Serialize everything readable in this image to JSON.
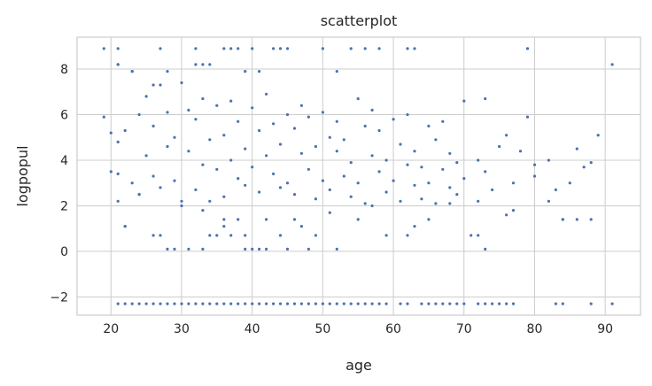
{
  "chart_data": {
    "type": "scatter",
    "title": "scatterplot",
    "xlabel": "age",
    "ylabel": "logpopul",
    "xlim": [
      15.2,
      95.0
    ],
    "ylim": [
      -2.8,
      9.4
    ],
    "xticks": [
      20,
      30,
      40,
      50,
      60,
      70,
      80,
      90
    ],
    "yticks": [
      -2,
      0,
      2,
      4,
      6,
      8
    ],
    "grid": true,
    "point_color": "#4c72b0",
    "series": [
      {
        "x": [
          21,
          22,
          23,
          24,
          25,
          26,
          27,
          28,
          29,
          30,
          31,
          32,
          33,
          34,
          35,
          36,
          37,
          38,
          39,
          40,
          41,
          42,
          43,
          44,
          45,
          46,
          47,
          48,
          49,
          50,
          51,
          52,
          53,
          54,
          55,
          56,
          57,
          58,
          59,
          61,
          62,
          64,
          65,
          66,
          67,
          68,
          69,
          70,
          72,
          73,
          74,
          75,
          76,
          77,
          83,
          84,
          88,
          91
        ],
        "y": [
          -2.3,
          -2.3,
          -2.3,
          -2.3,
          -2.3,
          -2.3,
          -2.3,
          -2.3,
          -2.3,
          -2.3,
          -2.3,
          -2.3,
          -2.3,
          -2.3,
          -2.3,
          -2.3,
          -2.3,
          -2.3,
          -2.3,
          -2.3,
          -2.3,
          -2.3,
          -2.3,
          -2.3,
          -2.3,
          -2.3,
          -2.3,
          -2.3,
          -2.3,
          -2.3,
          -2.3,
          -2.3,
          -2.3,
          -2.3,
          -2.3,
          -2.3,
          -2.3,
          -2.3,
          -2.3,
          -2.3,
          -2.3,
          -2.3,
          -2.3,
          -2.3,
          -2.3,
          -2.3,
          -2.3,
          -2.3,
          -2.3,
          -2.3,
          -2.3,
          -2.3,
          -2.3,
          -2.3,
          -2.3,
          -2.3,
          -2.3,
          -2.3
        ]
      },
      {
        "x": [
          19,
          21,
          21,
          27,
          32,
          36,
          37,
          38,
          40,
          43,
          44,
          45,
          50,
          54,
          56,
          58,
          62,
          63,
          79,
          91,
          21,
          23,
          26,
          28,
          32,
          33,
          34,
          39,
          41,
          52
        ],
        "y": [
          8.9,
          8.9,
          8.2,
          8.9,
          8.9,
          8.9,
          8.9,
          8.9,
          8.9,
          8.9,
          8.9,
          8.9,
          8.9,
          8.9,
          8.9,
          8.9,
          8.9,
          8.9,
          8.9,
          8.2,
          8.2,
          7.9,
          7.3,
          7.9,
          8.2,
          8.2,
          8.2,
          7.9,
          7.9,
          7.9
        ]
      },
      {
        "x": [
          19,
          20,
          20,
          21,
          21,
          22,
          22,
          23,
          23,
          24,
          24,
          25,
          25,
          26,
          26,
          27,
          27,
          28,
          28,
          29,
          29,
          30,
          30,
          31,
          31,
          32,
          32,
          33,
          33,
          34,
          34,
          35,
          35,
          36,
          36,
          37,
          37,
          38,
          38,
          39,
          39,
          40,
          40,
          41,
          41,
          42,
          42,
          43,
          43,
          44,
          44,
          45,
          45,
          46,
          46,
          47,
          47,
          48,
          48,
          49,
          49,
          50,
          50,
          51,
          51,
          52,
          52,
          53,
          53,
          54,
          54,
          55,
          55,
          56,
          56,
          57,
          57,
          58,
          58,
          59,
          59,
          60,
          60,
          61,
          61,
          62,
          62,
          63,
          63,
          64,
          64,
          65,
          65,
          66,
          66,
          67,
          67,
          68,
          68,
          69,
          69,
          70,
          70,
          71,
          72,
          72,
          73,
          73,
          74,
          75,
          76,
          77,
          77,
          78,
          79,
          80,
          82,
          83,
          84,
          85,
          86,
          87,
          88,
          89
        ],
        "y": [
          5.9,
          3.5,
          5.2,
          2.2,
          4.8,
          1.1,
          5.3,
          3.0,
          7.9,
          2.5,
          6.0,
          4.2,
          6.8,
          3.3,
          5.5,
          2.8,
          7.3,
          4.6,
          6.1,
          3.1,
          5.0,
          2.0,
          7.4,
          4.4,
          6.2,
          2.7,
          5.8,
          3.8,
          6.7,
          4.9,
          2.2,
          3.6,
          6.4,
          5.1,
          2.4,
          4.0,
          6.6,
          3.2,
          5.7,
          2.9,
          4.5,
          6.3,
          3.7,
          5.3,
          2.6,
          4.2,
          6.9,
          3.4,
          5.6,
          2.8,
          4.7,
          6.0,
          3.0,
          5.4,
          2.5,
          4.3,
          6.4,
          3.6,
          5.9,
          2.3,
          4.6,
          6.1,
          3.1,
          5.0,
          2.7,
          4.4,
          5.7,
          3.3,
          4.9,
          2.4,
          3.9,
          6.7,
          3.0,
          5.5,
          2.1,
          4.2,
          6.2,
          3.5,
          5.3,
          2.6,
          4.0,
          5.8,
          3.1,
          4.7,
          2.2,
          3.8,
          6.0,
          2.9,
          4.4,
          2.3,
          3.7,
          5.5,
          3.0,
          4.9,
          2.1,
          3.6,
          5.7,
          2.8,
          4.3,
          2.5,
          3.9,
          6.6,
          3.2,
          0.7,
          4.0,
          2.2,
          3.5,
          6.7,
          2.7,
          4.6,
          5.1,
          1.8,
          3.0,
          4.4,
          5.9,
          3.8,
          4.0,
          2.7,
          1.4,
          3.0,
          4.5,
          3.7,
          3.9,
          5.1
        ]
      },
      {
        "x": [
          22,
          26,
          27,
          28,
          29,
          31,
          33,
          34,
          35,
          36,
          37,
          38,
          39,
          40,
          41,
          42,
          44,
          45,
          46,
          48,
          49,
          52,
          55,
          59,
          62,
          65,
          72,
          73,
          82,
          84,
          86,
          88,
          21,
          24,
          30,
          33,
          36,
          39,
          42,
          47,
          51,
          57,
          63,
          68,
          76,
          80
        ],
        "y": [
          1.1,
          0.7,
          0.7,
          0.1,
          0.1,
          0.1,
          0.1,
          0.7,
          0.7,
          1.4,
          0.7,
          1.4,
          0.1,
          0.1,
          0.1,
          0.1,
          0.7,
          0.1,
          1.4,
          0.1,
          0.7,
          0.1,
          1.4,
          0.7,
          0.7,
          1.4,
          0.7,
          0.1,
          2.2,
          1.4,
          1.4,
          1.4,
          3.4,
          2.5,
          2.2,
          1.8,
          1.1,
          0.7,
          1.4,
          1.1,
          1.7,
          2.0,
          1.1,
          2.1,
          1.6,
          3.3
        ]
      }
    ]
  }
}
